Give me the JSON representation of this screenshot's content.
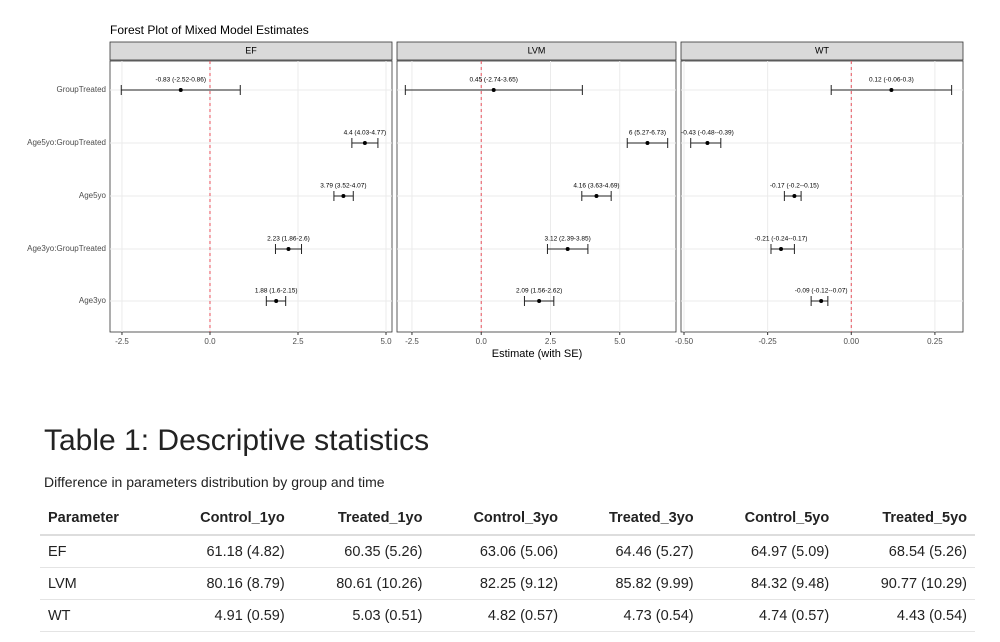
{
  "chart_data": {
    "type": "forest",
    "title": "Forest Plot of Mixed Model Estimates",
    "x_label": "Estimate (with SE)",
    "grid": true,
    "xintercept": 0,
    "categories": [
      "GroupTreated",
      "Age5yo:GroupTreated",
      "Age5yo",
      "Age3yo:GroupTreated",
      "Age3yo"
    ],
    "facets": [
      {
        "name": "EF",
        "values": [
          -0.83,
          4.4,
          3.79,
          2.23,
          1.88
        ],
        "lower": [
          -2.52,
          4.03,
          3.52,
          1.86,
          1.6
        ],
        "upper": [
          0.86,
          4.77,
          4.07,
          2.6,
          2.15
        ],
        "value_labels": [
          "-0.83 (-2.52-0.86)",
          "4.4 (4.03-4.77)",
          "3.79 (3.52-4.07)",
          "2.23 (1.86-2.6)",
          "1.88 (1.6-2.15)"
        ],
        "xlim": [
          -2.84,
          5.17
        ],
        "xticks": [
          -2.5,
          {
            "value": 0,
            "label": "0.0"
          },
          2.5,
          {
            "value": 5,
            "label": "5.0"
          }
        ]
      },
      {
        "name": "LVM",
        "values": [
          0.45,
          6,
          4.16,
          3.12,
          2.09
        ],
        "lower": [
          -2.74,
          5.27,
          3.63,
          2.39,
          1.56
        ],
        "upper": [
          3.65,
          6.73,
          4.69,
          3.85,
          2.62
        ],
        "value_labels": [
          "0.45 (-2.74-3.65)",
          "6 (5.27-6.73)",
          "4.16 (3.63-4.69)",
          "3.12 (2.39-3.85)",
          "2.09 (1.56-2.62)"
        ],
        "xlim": [
          -3.04,
          7.03
        ],
        "xticks": [
          -2.5,
          {
            "value": 0,
            "label": "0.0"
          },
          2.5,
          {
            "value": 5,
            "label": "5.0"
          }
        ]
      },
      {
        "name": "WT",
        "values": [
          0.12,
          -0.43,
          -0.17,
          -0.21,
          -0.09
        ],
        "lower": [
          -0.06,
          -0.48,
          -0.2,
          -0.24,
          -0.12
        ],
        "upper": [
          0.3,
          -0.39,
          -0.15,
          -0.17,
          -0.07
        ],
        "value_labels": [
          "0.12 (-0.06-0.3)",
          "-0.43 (-0.48--0.39)",
          "-0.17 (-0.2--0.15)",
          "-0.21 (-0.24--0.17)",
          "-0.09 (-0.12--0.07)"
        ],
        "xlim": [
          -0.509,
          0.334
        ],
        "xticks": [
          {
            "value": -0.5,
            "label": "-0.50"
          },
          -0.25,
          {
            "value": 0,
            "label": "0.00"
          },
          0.25
        ]
      }
    ]
  },
  "table": {
    "title": "Table 1: Descriptive statistics",
    "subtitle": "Difference in parameters distribution by group and time",
    "header": [
      "Parameter",
      "Control_1yo",
      "Treated_1yo",
      "Control_3yo",
      "Treated_3yo",
      "Control_5yo",
      "Treated_5yo"
    ],
    "rows": [
      [
        "EF",
        "61.18 (4.82)",
        "60.35 (5.26)",
        "63.06 (5.06)",
        "64.46 (5.27)",
        "64.97 (5.09)",
        "68.54 (5.26)"
      ],
      [
        "LVM",
        "80.16 (8.79)",
        "80.61 (10.26)",
        "82.25 (9.12)",
        "85.82 (9.99)",
        "84.32 (9.48)",
        "90.77 (10.29)"
      ],
      [
        "WT",
        "4.91 (0.59)",
        "5.03 (0.51)",
        "4.82 (0.57)",
        "4.73 (0.54)",
        "4.74 (0.57)",
        "4.43 (0.54)"
      ]
    ]
  }
}
